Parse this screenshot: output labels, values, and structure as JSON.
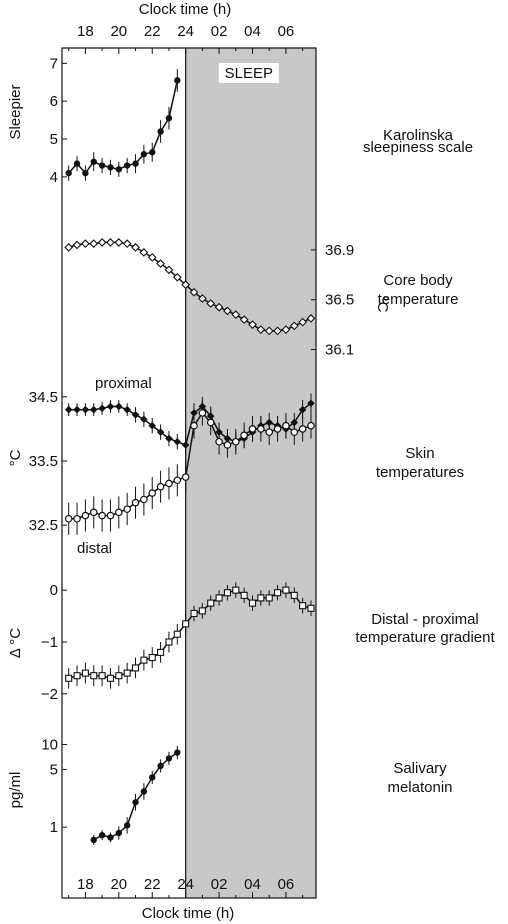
{
  "figure": {
    "top_axis_label": "Clock time (h)",
    "bottom_axis_label": "Clock time (h)",
    "sleep_label": "SLEEP",
    "x_tick_labels": [
      "18",
      "20",
      "22",
      "24",
      "02",
      "04",
      "06"
    ],
    "colors": {
      "shade": "#c8c8c8",
      "line": "#111111",
      "frame": "#111111"
    }
  },
  "chart_data": [
    {
      "type": "line",
      "title": "Karolinska sleepiness scale",
      "ylabel": "Sleepier",
      "ylim": [
        3.6,
        7.3
      ],
      "yticks": [
        4,
        5,
        6,
        7
      ],
      "series": [
        {
          "marker": "filled-circle",
          "x": [
            17.0,
            17.5,
            18.0,
            18.5,
            19.0,
            19.5,
            20.0,
            20.5,
            21.0,
            21.5,
            22.0,
            22.5,
            23.0,
            23.5
          ],
          "y": [
            4.1,
            4.35,
            4.1,
            4.4,
            4.3,
            4.25,
            4.2,
            4.3,
            4.35,
            4.6,
            4.65,
            5.2,
            5.55,
            6.55
          ],
          "err": [
            0.2,
            0.2,
            0.2,
            0.25,
            0.2,
            0.2,
            0.2,
            0.2,
            0.25,
            0.25,
            0.25,
            0.3,
            0.3,
            0.3
          ]
        }
      ]
    },
    {
      "type": "line",
      "title": "Core body temperature",
      "ylabel": "°C",
      "ylim": [
        36.0,
        37.1
      ],
      "yticks": [
        36.1,
        36.5,
        36.9
      ],
      "ytick_labels": [
        "36.1",
        "36.5",
        "36.9"
      ],
      "series": [
        {
          "marker": "open-diamond",
          "x": [
            17.0,
            17.5,
            18.0,
            18.5,
            19.0,
            19.5,
            20.0,
            20.5,
            21.0,
            21.5,
            22.0,
            22.5,
            23.0,
            23.5,
            24.0,
            24.5,
            25.0,
            25.5,
            26.0,
            26.5,
            27.0,
            27.5,
            28.0,
            28.5,
            29.0,
            29.5,
            30.0,
            30.5,
            31.0,
            31.5
          ],
          "y": [
            36.92,
            36.94,
            36.95,
            36.95,
            36.96,
            36.96,
            36.96,
            36.95,
            36.92,
            36.88,
            36.84,
            36.79,
            36.74,
            36.68,
            36.62,
            36.56,
            36.51,
            36.47,
            36.44,
            36.41,
            36.38,
            36.34,
            36.3,
            36.26,
            36.25,
            36.25,
            36.26,
            36.29,
            36.32,
            36.35
          ]
        }
      ]
    },
    {
      "type": "line",
      "title": "Skin temperatures",
      "ylabel": "°C",
      "ylim": [
        32.3,
        34.7
      ],
      "yticks": [
        32.5,
        33.5,
        34.5
      ],
      "ytick_labels": [
        "32.5",
        "33.5",
        "34.5"
      ],
      "series": [
        {
          "name": "proximal",
          "marker": "filled-diamond",
          "x": [
            17.0,
            17.5,
            18.0,
            18.5,
            19.0,
            19.5,
            20.0,
            20.5,
            21.0,
            21.5,
            22.0,
            22.5,
            23.0,
            23.5,
            24.0,
            24.5,
            25.0,
            25.5,
            26.0,
            26.5,
            27.0,
            27.5,
            28.0,
            28.5,
            29.0,
            29.5,
            30.0,
            30.5,
            31.0,
            31.5
          ],
          "y": [
            34.3,
            34.3,
            34.3,
            34.3,
            34.32,
            34.35,
            34.35,
            34.3,
            34.22,
            34.15,
            34.05,
            33.95,
            33.85,
            33.8,
            33.75,
            34.25,
            34.35,
            34.2,
            33.95,
            33.85,
            33.8,
            33.85,
            33.95,
            34.05,
            34.1,
            34.05,
            34.0,
            34.1,
            34.3,
            34.4
          ],
          "err": [
            0.1,
            0.1,
            0.1,
            0.1,
            0.1,
            0.1,
            0.1,
            0.1,
            0.12,
            0.12,
            0.12,
            0.12,
            0.12,
            0.12,
            0.15,
            0.15,
            0.15,
            0.15,
            0.15,
            0.15,
            0.15,
            0.15,
            0.15,
            0.15,
            0.15,
            0.15,
            0.15,
            0.15,
            0.15,
            0.15
          ]
        },
        {
          "name": "distal",
          "marker": "open-circle",
          "x": [
            17.0,
            17.5,
            18.0,
            18.5,
            19.0,
            19.5,
            20.0,
            20.5,
            21.0,
            21.5,
            22.0,
            22.5,
            23.0,
            23.5,
            24.0,
            24.5,
            25.0,
            25.5,
            26.0,
            26.5,
            27.0,
            27.5,
            28.0,
            28.5,
            29.0,
            29.5,
            30.0,
            30.5,
            31.0,
            31.5
          ],
          "y": [
            32.6,
            32.6,
            32.65,
            32.7,
            32.65,
            32.65,
            32.7,
            32.75,
            32.85,
            32.9,
            33.0,
            33.1,
            33.15,
            33.2,
            33.25,
            34.05,
            34.25,
            34.1,
            33.8,
            33.75,
            33.8,
            33.9,
            34.0,
            34.0,
            33.95,
            34.0,
            34.05,
            33.95,
            34.0,
            34.05
          ],
          "err": [
            0.25,
            0.25,
            0.25,
            0.25,
            0.25,
            0.25,
            0.25,
            0.25,
            0.25,
            0.25,
            0.25,
            0.25,
            0.25,
            0.25,
            0.25,
            0.2,
            0.2,
            0.2,
            0.2,
            0.2,
            0.2,
            0.2,
            0.2,
            0.2,
            0.2,
            0.2,
            0.2,
            0.2,
            0.2,
            0.2
          ]
        }
      ]
    },
    {
      "type": "line",
      "title": "Distal - proximal temperature gradient",
      "ylabel": "Δ °C",
      "ylim": [
        -2.35,
        0.35
      ],
      "yticks": [
        -2,
        -1,
        0
      ],
      "ytick_labels": [
        "−2",
        "−1",
        "0"
      ],
      "series": [
        {
          "marker": "open-square",
          "x": [
            17.0,
            17.5,
            18.0,
            18.5,
            19.0,
            19.5,
            20.0,
            20.5,
            21.0,
            21.5,
            22.0,
            22.5,
            23.0,
            23.5,
            24.0,
            24.5,
            25.0,
            25.5,
            26.0,
            26.5,
            27.0,
            27.5,
            28.0,
            28.5,
            29.0,
            29.5,
            30.0,
            30.5,
            31.0,
            31.5
          ],
          "y": [
            -1.7,
            -1.65,
            -1.6,
            -1.65,
            -1.65,
            -1.7,
            -1.65,
            -1.6,
            -1.5,
            -1.35,
            -1.3,
            -1.2,
            -1.0,
            -0.85,
            -0.65,
            -0.45,
            -0.4,
            -0.25,
            -0.15,
            -0.05,
            0.0,
            -0.1,
            -0.25,
            -0.15,
            -0.15,
            -0.05,
            0.0,
            -0.1,
            -0.3,
            -0.35
          ],
          "err": [
            0.2,
            0.2,
            0.2,
            0.2,
            0.2,
            0.2,
            0.2,
            0.2,
            0.2,
            0.2,
            0.2,
            0.2,
            0.2,
            0.2,
            0.2,
            0.15,
            0.15,
            0.15,
            0.15,
            0.15,
            0.15,
            0.15,
            0.15,
            0.15,
            0.15,
            0.15,
            0.15,
            0.15,
            0.15,
            0.15
          ]
        }
      ]
    },
    {
      "type": "line",
      "title": "Salivary melatonin",
      "ylabel": "pg/ml",
      "yscale": "log",
      "ylim": [
        0.5,
        12
      ],
      "yticks": [
        1,
        5,
        10
      ],
      "ytick_labels": [
        "1",
        "5",
        "10"
      ],
      "series": [
        {
          "marker": "filled-circle",
          "x": [
            18.5,
            19.0,
            19.5,
            20.0,
            20.5,
            21.0,
            21.5,
            22.0,
            22.5,
            23.0,
            23.5
          ],
          "y": [
            0.7,
            0.8,
            0.75,
            0.85,
            1.05,
            2.0,
            2.7,
            4.0,
            5.5,
            6.8,
            8.0
          ],
          "err_log": [
            0.06,
            0.06,
            0.06,
            0.08,
            0.1,
            0.1,
            0.1,
            0.08,
            0.08,
            0.08,
            0.08
          ]
        }
      ]
    }
  ],
  "annotations": {
    "proximal_label": "proximal",
    "distal_label": "distal"
  }
}
